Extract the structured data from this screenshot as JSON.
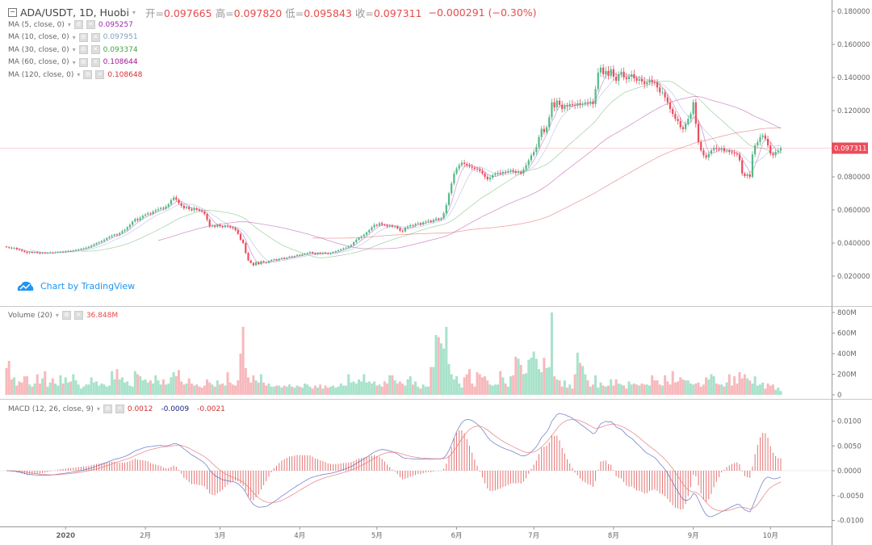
{
  "header": {
    "symbol": "ADA/USDT, 1D, Huobi",
    "open_label": "开=",
    "open": "0.097665",
    "high_label": "高=",
    "high": "0.097820",
    "low_label": "低=",
    "low": "0.095843",
    "close_label": "收=",
    "close": "0.097311",
    "change": "−0.000291 (−0.30%)"
  },
  "indicators": [
    {
      "label": "MA (5, close, 0)",
      "value": "0.095257",
      "color": "#9c27b0",
      "period": 5
    },
    {
      "label": "MA (10, close, 0)",
      "value": "0.097951",
      "color": "#7e9fc4",
      "period": 10
    },
    {
      "label": "MA (30, close, 0)",
      "value": "0.093374",
      "color": "#43a047",
      "period": 30
    },
    {
      "label": "MA (60, close, 0)",
      "value": "0.108644",
      "color": "#a0168f",
      "period": 60
    },
    {
      "label": "MA (120, close, 0)",
      "value": "0.108648",
      "color": "#d32f2f",
      "period": 120
    }
  ],
  "volume_legend": {
    "label": "Volume (20)",
    "value": "36.848M"
  },
  "macd_legend": {
    "label": "MACD (12, 26, close, 9)",
    "values": [
      "0.0012",
      "-0.0009",
      "-0.0021"
    ],
    "colors": [
      "#d32f2f",
      "#1a237e",
      "#d32f2f"
    ]
  },
  "watermark": "Chart by TradingView",
  "colors": {
    "up": "#53b987",
    "down": "#eb4d5c",
    "vol_up": "#a8e2cb",
    "vol_down": "#f7b9bc",
    "macd_line": "#3f51b5",
    "signal_line": "#e57373",
    "hist": "#e57373",
    "price_line": "#eb4d5c",
    "watermark": "#2196f3"
  },
  "chart_data": {
    "type": "candlestick",
    "interval": "1D",
    "first_candle_date": "2019-12-09",
    "last_price": 0.097311,
    "last_price_label": "0.097311",
    "price_axis": {
      "range": [
        0.005,
        0.185
      ],
      "ticks": [
        {
          "value": 0.18,
          "label": "0.180000"
        },
        {
          "value": 0.16,
          "label": "0.160000"
        },
        {
          "value": 0.14,
          "label": "0.140000"
        },
        {
          "value": 0.12,
          "label": "0.120000"
        },
        {
          "value": 0.08,
          "label": "0.080000"
        },
        {
          "value": 0.06,
          "label": "0.060000"
        },
        {
          "value": 0.04,
          "label": "0.040000"
        },
        {
          "value": 0.02,
          "label": "0.020000"
        }
      ]
    },
    "volume_axis": {
      "unit": "M",
      "ticks": [
        {
          "value": 800,
          "label": "800M"
        },
        {
          "value": 600,
          "label": "600M"
        },
        {
          "value": 400,
          "label": "400M"
        },
        {
          "value": 200,
          "label": "200M"
        },
        {
          "value": 0,
          "label": "0"
        }
      ]
    },
    "macd_axis": {
      "ticks": [
        {
          "value": 0.01,
          "label": "0.0100"
        },
        {
          "value": 0.005,
          "label": "0.0050"
        },
        {
          "value": 0,
          "label": "0.0000"
        },
        {
          "value": -0.005,
          "label": "-0.0050"
        },
        {
          "value": -0.01,
          "label": "-0.0100"
        }
      ]
    },
    "x_ticks": [
      {
        "label": "2020",
        "date": "2020-01-01"
      },
      {
        "label": "2月",
        "date": "2020-02-01"
      },
      {
        "label": "3月",
        "date": "2020-03-01"
      },
      {
        "label": "4月",
        "date": "2020-04-01"
      },
      {
        "label": "5月",
        "date": "2020-05-01"
      },
      {
        "label": "6月",
        "date": "2020-06-01"
      },
      {
        "label": "7月",
        "date": "2020-07-01"
      },
      {
        "label": "8月",
        "date": "2020-08-01"
      },
      {
        "label": "9月",
        "date": "2020-09-01"
      },
      {
        "label": "10月",
        "date": "2020-10-01"
      }
    ],
    "closes": [
      0.0375,
      0.0372,
      0.0368,
      0.037,
      0.0362,
      0.0358,
      0.0352,
      0.0346,
      0.034,
      0.0344,
      0.0342,
      0.0345,
      0.034,
      0.0338,
      0.0341,
      0.0339,
      0.034,
      0.0343,
      0.0341,
      0.0344,
      0.0346,
      0.0348,
      0.0347,
      0.035,
      0.0352,
      0.0351,
      0.0355,
      0.0358,
      0.0362,
      0.0365,
      0.0368,
      0.0372,
      0.0378,
      0.0385,
      0.0392,
      0.04,
      0.0405,
      0.0412,
      0.042,
      0.043,
      0.0438,
      0.0445,
      0.0452,
      0.0448,
      0.046,
      0.0472,
      0.048,
      0.0495,
      0.051,
      0.053,
      0.0545,
      0.0538,
      0.0552,
      0.0565,
      0.0572,
      0.058,
      0.0576,
      0.059,
      0.0598,
      0.0605,
      0.0612,
      0.0608,
      0.062,
      0.0635,
      0.066,
      0.0675,
      0.0662,
      0.064,
      0.0625,
      0.061,
      0.0618,
      0.0605,
      0.0598,
      0.061,
      0.0602,
      0.0595,
      0.059,
      0.0575,
      0.054,
      0.05,
      0.0505,
      0.0498,
      0.051,
      0.0502,
      0.0496,
      0.0505,
      0.05,
      0.0494,
      0.049,
      0.0478,
      0.0455,
      0.042,
      0.04,
      0.034,
      0.0295,
      0.028,
      0.0265,
      0.0285,
      0.0272,
      0.029,
      0.0284,
      0.028,
      0.0292,
      0.0298,
      0.0302,
      0.0296,
      0.0305,
      0.031,
      0.0306,
      0.0312,
      0.0318,
      0.0315,
      0.0322,
      0.0328,
      0.0325,
      0.0332,
      0.0336,
      0.034,
      0.0345,
      0.0338,
      0.0332,
      0.034,
      0.0335,
      0.0342,
      0.0338,
      0.0334,
      0.034,
      0.0345,
      0.035,
      0.0356,
      0.0362,
      0.0368,
      0.0372,
      0.038,
      0.0388,
      0.0405,
      0.042,
      0.0432,
      0.044,
      0.045,
      0.0465,
      0.0478,
      0.0495,
      0.051,
      0.0505,
      0.052,
      0.0512,
      0.0508,
      0.05,
      0.0505,
      0.0498,
      0.05,
      0.0488,
      0.0475,
      0.047,
      0.0492,
      0.05,
      0.0508,
      0.0505,
      0.0515,
      0.052,
      0.0512,
      0.0525,
      0.053,
      0.0535,
      0.0528,
      0.054,
      0.0548,
      0.0542,
      0.055,
      0.058,
      0.063,
      0.07,
      0.076,
      0.082,
      0.085,
      0.087,
      0.0885,
      0.0878,
      0.087,
      0.0862,
      0.0855,
      0.0848,
      0.0845,
      0.0835,
      0.082,
      0.08,
      0.0785,
      0.0795,
      0.081,
      0.0818,
      0.0825,
      0.082,
      0.083,
      0.0828,
      0.0835,
      0.084,
      0.0832,
      0.0825,
      0.083,
      0.082,
      0.0845,
      0.087,
      0.09,
      0.093,
      0.095,
      0.098,
      0.104,
      0.109,
      0.107,
      0.11,
      0.116,
      0.125,
      0.122,
      0.126,
      0.1235,
      0.121,
      0.123,
      0.1225,
      0.124,
      0.1235,
      0.123,
      0.1245,
      0.1238,
      0.1242,
      0.125,
      0.1245,
      0.1255,
      0.124,
      0.133,
      0.143,
      0.146,
      0.142,
      0.144,
      0.141,
      0.145,
      0.1405,
      0.138,
      0.142,
      0.1435,
      0.14,
      0.139,
      0.1405,
      0.142,
      0.1395,
      0.138,
      0.139,
      0.1375,
      0.136,
      0.137,
      0.1385,
      0.1372,
      0.137,
      0.134,
      0.131,
      0.131,
      0.128,
      0.125,
      0.121,
      0.118,
      0.115,
      0.1137,
      0.11,
      0.1088,
      0.112,
      0.115,
      0.118,
      0.125,
      0.112,
      0.101,
      0.096,
      0.093,
      0.0917,
      0.094,
      0.096,
      0.0975,
      0.0968,
      0.0966,
      0.0972,
      0.0955,
      0.0958,
      0.095,
      0.0945,
      0.094,
      0.0935,
      0.09,
      0.082,
      0.0805,
      0.0815,
      0.08,
      0.0935,
      0.099,
      0.101,
      0.104,
      0.105,
      0.103,
      0.099,
      0.094,
      0.093,
      0.095,
      0.0958,
      0.0973
    ],
    "volumes_m": [
      260,
      330,
      150,
      170,
      90,
      130,
      120,
      180,
      180,
      100,
      80,
      110,
      200,
      110,
      160,
      230,
      80,
      120,
      160,
      110,
      90,
      190,
      110,
      170,
      120,
      130,
      200,
      140,
      100,
      60,
      80,
      100,
      100,
      170,
      120,
      130,
      90,
      110,
      100,
      80,
      90,
      230,
      150,
      250,
      150,
      170,
      120,
      130,
      90,
      80,
      230,
      200,
      180,
      140,
      150,
      120,
      140,
      110,
      190,
      140,
      100,
      150,
      100,
      110,
      170,
      220,
      180,
      240,
      130,
      100,
      110,
      160,
      110,
      90,
      100,
      80,
      70,
      90,
      150,
      120,
      100,
      80,
      140,
      100,
      110,
      90,
      220,
      120,
      100,
      90,
      140,
      400,
      660,
      260,
      170,
      120,
      190,
      140,
      120,
      200,
      120,
      90,
      110,
      80,
      80,
      90,
      90,
      70,
      90,
      80,
      100,
      80,
      70,
      90,
      80,
      70,
      110,
      100,
      80,
      60,
      90,
      70,
      100,
      60,
      90,
      70,
      80,
      90,
      70,
      80,
      110,
      90,
      90,
      200,
      120,
      130,
      110,
      150,
      130,
      200,
      120,
      130,
      110,
      130,
      90,
      100,
      80,
      130,
      110,
      190,
      190,
      140,
      110,
      130,
      110,
      90,
      150,
      180,
      100,
      130,
      80,
      60,
      100,
      80,
      80,
      270,
      270,
      580,
      560,
      500,
      450,
      660,
      300,
      200,
      150,
      180,
      110,
      70,
      170,
      200,
      250,
      110,
      80,
      220,
      200,
      170,
      180,
      140,
      100,
      90,
      100,
      100,
      230,
      170,
      110,
      80,
      180,
      190,
      370,
      350,
      290,
      200,
      210,
      340,
      360,
      420,
      350,
      250,
      220,
      360,
      260,
      270,
      800,
      180,
      150,
      140,
      80,
      140,
      70,
      100,
      60,
      200,
      410,
      310,
      280,
      200,
      140,
      80,
      100,
      190,
      70,
      120,
      90,
      80,
      90,
      150,
      90,
      150,
      110,
      100,
      90,
      60,
      130,
      100,
      110,
      100,
      90,
      110,
      100,
      100,
      90,
      190,
      140,
      140,
      100,
      90,
      190,
      130,
      100,
      230,
      120,
      130,
      170,
      150,
      140,
      140,
      110,
      100,
      110,
      120,
      80,
      100,
      170,
      150,
      200,
      180,
      110,
      100,
      100,
      80,
      120,
      200,
      90,
      180,
      110,
      220,
      160,
      200,
      160,
      140,
      110,
      180,
      90,
      100,
      120,
      60,
      110,
      90,
      100,
      50,
      70,
      37
    ]
  }
}
